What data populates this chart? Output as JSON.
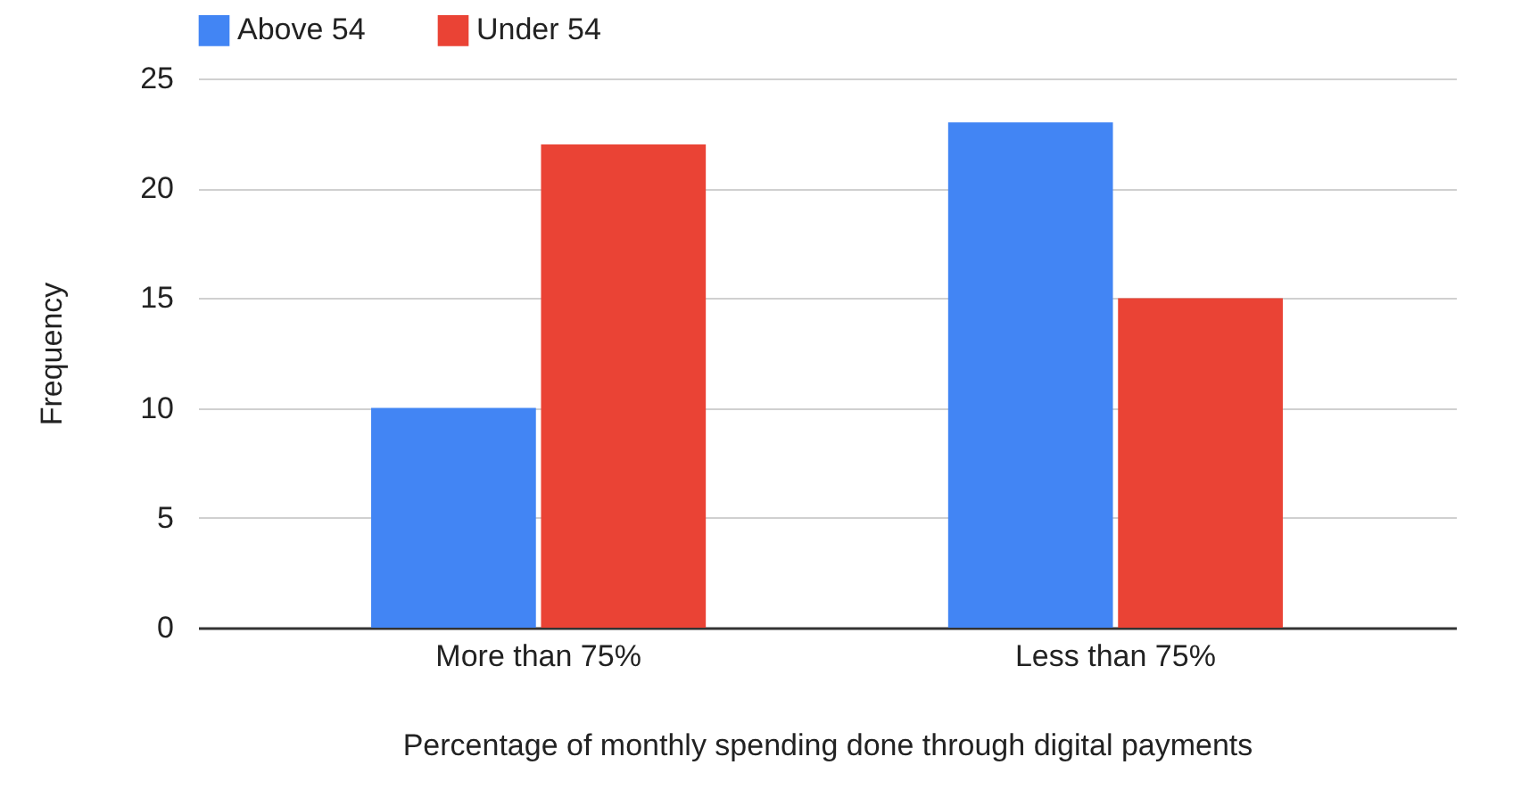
{
  "chart_data": {
    "type": "bar",
    "xlabel": "Percentage of monthly spending done through digital payments",
    "ylabel": "Frequency",
    "categories": [
      "More than 75%",
      "Less than 75%"
    ],
    "series": [
      {
        "name": "Above 54",
        "color": "#4285f4",
        "values": [
          10,
          23
        ]
      },
      {
        "name": "Under 54",
        "color": "#ea4335",
        "values": [
          22,
          15
        ]
      }
    ],
    "ylim": [
      0,
      25
    ],
    "yticks": [
      0,
      5,
      10,
      15,
      20,
      25
    ],
    "grid": "y",
    "legend": "top"
  }
}
